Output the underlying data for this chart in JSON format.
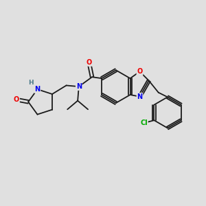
{
  "background_color": "#e0e0e0",
  "bond_color": "#1a1a1a",
  "atom_colors": {
    "N": "#0000ee",
    "O": "#ee0000",
    "Cl": "#00aa00",
    "H": "#4a7a8a",
    "C": "#1a1a1a"
  }
}
